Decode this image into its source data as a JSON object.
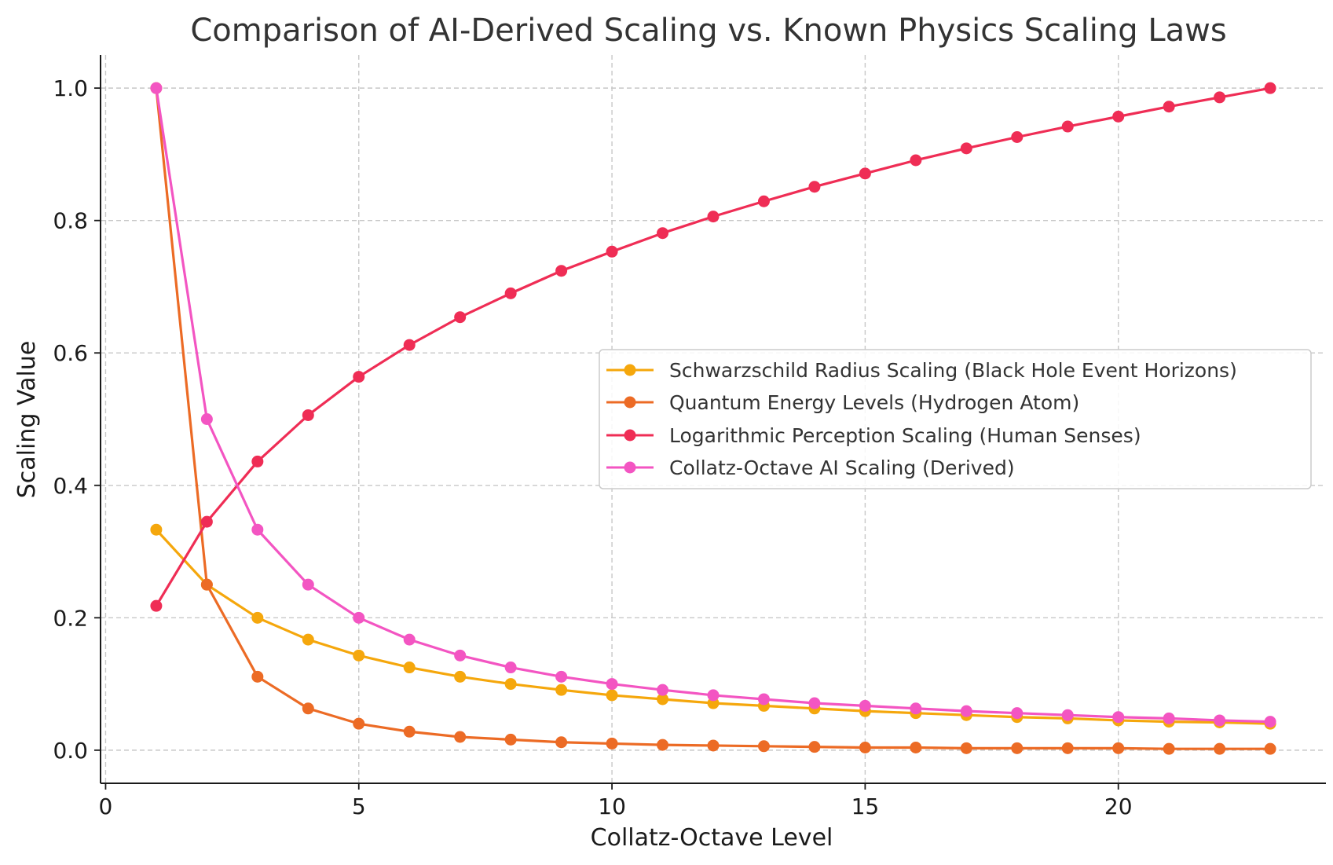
{
  "chart_data": {
    "type": "line",
    "title": "Comparison of AI-Derived Scaling vs. Known Physics Scaling Laws",
    "xlabel": "Collatz-Octave Level",
    "ylabel": "Scaling Value",
    "xlim": [
      -0.1,
      24.1
    ],
    "ylim": [
      -0.05,
      1.05
    ],
    "x_ticks": [
      0,
      5,
      10,
      15,
      20
    ],
    "y_ticks": [
      0.0,
      0.2,
      0.4,
      0.6,
      0.8,
      1.0
    ],
    "x_tick_labels": [
      "0",
      "5",
      "10",
      "15",
      "20"
    ],
    "y_tick_labels": [
      "0.0",
      "0.2",
      "0.4",
      "0.6",
      "0.8",
      "1.0"
    ],
    "grid": true,
    "legend_position": "center-right",
    "x": [
      1,
      2,
      3,
      4,
      5,
      6,
      7,
      8,
      9,
      10,
      11,
      12,
      13,
      14,
      15,
      16,
      17,
      18,
      19,
      20,
      21,
      22,
      23
    ],
    "series": [
      {
        "name": "Schwarzschild Radius Scaling (Black Hole Event Horizons)",
        "color": "#f5a70c",
        "values": [
          0.333,
          0.25,
          0.2,
          0.167,
          0.143,
          0.125,
          0.111,
          0.1,
          0.091,
          0.083,
          0.077,
          0.071,
          0.067,
          0.063,
          0.059,
          0.056,
          0.053,
          0.05,
          0.048,
          0.045,
          0.043,
          0.042,
          0.04
        ]
      },
      {
        "name": "Quantum Energy Levels (Hydrogen Atom)",
        "color": "#ec6b25",
        "values": [
          1.0,
          0.25,
          0.111,
          0.063,
          0.04,
          0.028,
          0.02,
          0.016,
          0.012,
          0.01,
          0.008,
          0.007,
          0.006,
          0.005,
          0.004,
          0.004,
          0.003,
          0.003,
          0.003,
          0.003,
          0.002,
          0.002,
          0.002
        ]
      },
      {
        "name": "Logarithmic Perception Scaling (Human Senses)",
        "color": "#ef2d55",
        "values": [
          0.218,
          0.345,
          0.436,
          0.506,
          0.564,
          0.612,
          0.654,
          0.69,
          0.724,
          0.753,
          0.781,
          0.806,
          0.829,
          0.851,
          0.871,
          0.891,
          0.909,
          0.926,
          0.942,
          0.957,
          0.972,
          0.986,
          1.0
        ]
      },
      {
        "name": "Collatz-Octave AI Scaling (Derived)",
        "color": "#f355c2",
        "values": [
          1.0,
          0.5,
          0.333,
          0.25,
          0.2,
          0.167,
          0.143,
          0.125,
          0.111,
          0.1,
          0.091,
          0.083,
          0.077,
          0.071,
          0.067,
          0.063,
          0.059,
          0.056,
          0.053,
          0.05,
          0.048,
          0.045,
          0.043
        ]
      }
    ]
  }
}
